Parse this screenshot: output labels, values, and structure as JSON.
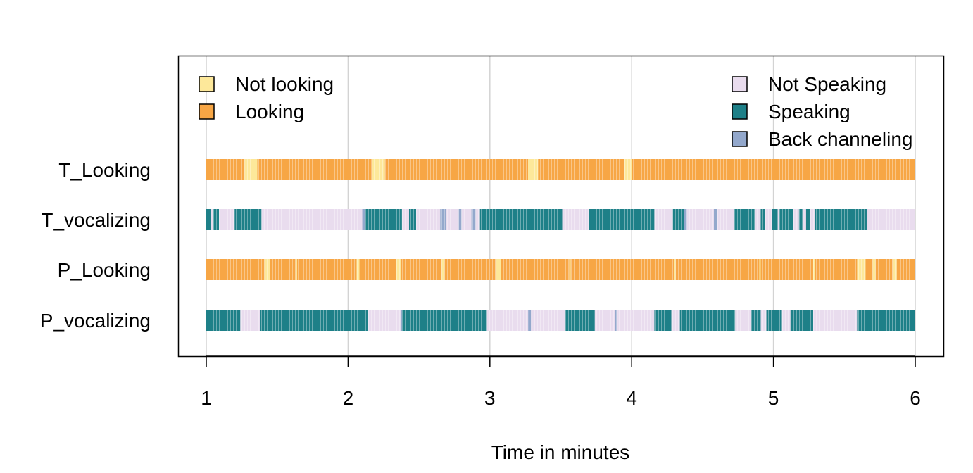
{
  "chart_data": {
    "type": "timeline",
    "title": "",
    "xlabel": "Time in minutes",
    "ylabel": "",
    "xlim": [
      1,
      6
    ],
    "x_ticks": [
      "1",
      "2",
      "3",
      "4",
      "5",
      "6"
    ],
    "x_tick_values": [
      1,
      2,
      3,
      4,
      5,
      6
    ],
    "grid": "vertical",
    "colors": {
      "Not looking": "#fde89a",
      "Looking": "#f7a645",
      "Not Speaking": "#e9dcee",
      "Speaking": "#1e8088",
      "Back channeling": "#93a8cc"
    },
    "legends": [
      {
        "placement": "top-left",
        "entries": [
          "Not looking",
          "Looking"
        ]
      },
      {
        "placement": "top-right",
        "entries": [
          "Not Speaking",
          "Speaking",
          "Back channeling"
        ]
      }
    ],
    "rows": [
      {
        "name": "T_Looking",
        "segments": [
          {
            "start": 1.0,
            "end": 1.27,
            "state": "Looking"
          },
          {
            "start": 1.27,
            "end": 1.36,
            "state": "Not looking"
          },
          {
            "start": 1.36,
            "end": 2.17,
            "state": "Looking"
          },
          {
            "start": 2.17,
            "end": 2.26,
            "state": "Not looking"
          },
          {
            "start": 2.26,
            "end": 3.27,
            "state": "Looking"
          },
          {
            "start": 3.27,
            "end": 3.34,
            "state": "Not looking"
          },
          {
            "start": 3.34,
            "end": 3.95,
            "state": "Looking"
          },
          {
            "start": 3.95,
            "end": 4.0,
            "state": "Not looking"
          },
          {
            "start": 4.0,
            "end": 6.0,
            "state": "Looking"
          }
        ]
      },
      {
        "name": "T_vocalizing",
        "segments": [
          {
            "start": 1.0,
            "end": 1.03,
            "state": "Speaking"
          },
          {
            "start": 1.03,
            "end": 1.05,
            "state": "Not Speaking"
          },
          {
            "start": 1.05,
            "end": 1.09,
            "state": "Speaking"
          },
          {
            "start": 1.09,
            "end": 1.2,
            "state": "Not Speaking"
          },
          {
            "start": 1.2,
            "end": 1.39,
            "state": "Speaking"
          },
          {
            "start": 1.39,
            "end": 2.1,
            "state": "Not Speaking"
          },
          {
            "start": 2.1,
            "end": 2.12,
            "state": "Back channeling"
          },
          {
            "start": 2.12,
            "end": 2.38,
            "state": "Speaking"
          },
          {
            "start": 2.38,
            "end": 2.43,
            "state": "Not Speaking"
          },
          {
            "start": 2.43,
            "end": 2.48,
            "state": "Speaking"
          },
          {
            "start": 2.48,
            "end": 2.65,
            "state": "Not Speaking"
          },
          {
            "start": 2.65,
            "end": 2.69,
            "state": "Back channeling"
          },
          {
            "start": 2.69,
            "end": 2.78,
            "state": "Not Speaking"
          },
          {
            "start": 2.78,
            "end": 2.8,
            "state": "Back channeling"
          },
          {
            "start": 2.8,
            "end": 2.87,
            "state": "Not Speaking"
          },
          {
            "start": 2.87,
            "end": 2.9,
            "state": "Back channeling"
          },
          {
            "start": 2.9,
            "end": 2.93,
            "state": "Not Speaking"
          },
          {
            "start": 2.93,
            "end": 3.51,
            "state": "Speaking"
          },
          {
            "start": 3.51,
            "end": 3.7,
            "state": "Not Speaking"
          },
          {
            "start": 3.7,
            "end": 4.16,
            "state": "Speaking"
          },
          {
            "start": 4.16,
            "end": 4.29,
            "state": "Not Speaking"
          },
          {
            "start": 4.29,
            "end": 4.37,
            "state": "Speaking"
          },
          {
            "start": 4.37,
            "end": 4.39,
            "state": "Back channeling"
          },
          {
            "start": 4.39,
            "end": 4.58,
            "state": "Not Speaking"
          },
          {
            "start": 4.58,
            "end": 4.6,
            "state": "Back channeling"
          },
          {
            "start": 4.6,
            "end": 4.72,
            "state": "Not Speaking"
          },
          {
            "start": 4.72,
            "end": 4.87,
            "state": "Speaking"
          },
          {
            "start": 4.87,
            "end": 4.91,
            "state": "Not Speaking"
          },
          {
            "start": 4.91,
            "end": 4.94,
            "state": "Speaking"
          },
          {
            "start": 4.94,
            "end": 4.99,
            "state": "Not Speaking"
          },
          {
            "start": 4.99,
            "end": 5.03,
            "state": "Speaking"
          },
          {
            "start": 5.03,
            "end": 5.04,
            "state": "Not Speaking"
          },
          {
            "start": 5.04,
            "end": 5.14,
            "state": "Speaking"
          },
          {
            "start": 5.14,
            "end": 5.18,
            "state": "Not Speaking"
          },
          {
            "start": 5.18,
            "end": 5.21,
            "state": "Speaking"
          },
          {
            "start": 5.21,
            "end": 5.23,
            "state": "Not Speaking"
          },
          {
            "start": 5.23,
            "end": 5.26,
            "state": "Speaking"
          },
          {
            "start": 5.26,
            "end": 5.29,
            "state": "Not Speaking"
          },
          {
            "start": 5.29,
            "end": 5.66,
            "state": "Speaking"
          },
          {
            "start": 5.66,
            "end": 6.0,
            "state": "Not Speaking"
          }
        ]
      },
      {
        "name": "P_Looking",
        "segments": [
          {
            "start": 1.0,
            "end": 1.41,
            "state": "Looking"
          },
          {
            "start": 1.41,
            "end": 1.45,
            "state": "Not looking"
          },
          {
            "start": 1.45,
            "end": 1.63,
            "state": "Looking"
          },
          {
            "start": 1.63,
            "end": 1.64,
            "state": "Not looking"
          },
          {
            "start": 1.64,
            "end": 2.06,
            "state": "Looking"
          },
          {
            "start": 2.06,
            "end": 2.08,
            "state": "Not looking"
          },
          {
            "start": 2.08,
            "end": 2.34,
            "state": "Looking"
          },
          {
            "start": 2.34,
            "end": 2.37,
            "state": "Not looking"
          },
          {
            "start": 2.37,
            "end": 2.66,
            "state": "Looking"
          },
          {
            "start": 2.66,
            "end": 2.68,
            "state": "Not looking"
          },
          {
            "start": 2.68,
            "end": 3.04,
            "state": "Looking"
          },
          {
            "start": 3.04,
            "end": 3.08,
            "state": "Not looking"
          },
          {
            "start": 3.08,
            "end": 3.56,
            "state": "Looking"
          },
          {
            "start": 3.56,
            "end": 3.57,
            "state": "Not looking"
          },
          {
            "start": 3.57,
            "end": 4.3,
            "state": "Looking"
          },
          {
            "start": 4.3,
            "end": 4.31,
            "state": "Not looking"
          },
          {
            "start": 4.31,
            "end": 4.9,
            "state": "Looking"
          },
          {
            "start": 4.9,
            "end": 4.91,
            "state": "Not looking"
          },
          {
            "start": 4.91,
            "end": 5.28,
            "state": "Looking"
          },
          {
            "start": 5.28,
            "end": 5.29,
            "state": "Not looking"
          },
          {
            "start": 5.29,
            "end": 5.59,
            "state": "Looking"
          },
          {
            "start": 5.59,
            "end": 5.65,
            "state": "Not looking"
          },
          {
            "start": 5.65,
            "end": 5.7,
            "state": "Looking"
          },
          {
            "start": 5.7,
            "end": 5.72,
            "state": "Not looking"
          },
          {
            "start": 5.72,
            "end": 5.84,
            "state": "Looking"
          },
          {
            "start": 5.84,
            "end": 5.87,
            "state": "Not looking"
          },
          {
            "start": 5.87,
            "end": 6.0,
            "state": "Looking"
          }
        ]
      },
      {
        "name": "P_vocalizing",
        "segments": [
          {
            "start": 1.0,
            "end": 1.24,
            "state": "Speaking"
          },
          {
            "start": 1.24,
            "end": 1.38,
            "state": "Not Speaking"
          },
          {
            "start": 1.38,
            "end": 2.14,
            "state": "Speaking"
          },
          {
            "start": 2.14,
            "end": 2.37,
            "state": "Not Speaking"
          },
          {
            "start": 2.37,
            "end": 2.38,
            "state": "Back channeling"
          },
          {
            "start": 2.38,
            "end": 2.98,
            "state": "Speaking"
          },
          {
            "start": 2.98,
            "end": 3.27,
            "state": "Not Speaking"
          },
          {
            "start": 3.27,
            "end": 3.29,
            "state": "Back channeling"
          },
          {
            "start": 3.29,
            "end": 3.53,
            "state": "Not Speaking"
          },
          {
            "start": 3.53,
            "end": 3.74,
            "state": "Speaking"
          },
          {
            "start": 3.74,
            "end": 3.88,
            "state": "Not Speaking"
          },
          {
            "start": 3.88,
            "end": 3.9,
            "state": "Back channeling"
          },
          {
            "start": 3.9,
            "end": 4.16,
            "state": "Not Speaking"
          },
          {
            "start": 4.16,
            "end": 4.28,
            "state": "Speaking"
          },
          {
            "start": 4.28,
            "end": 4.34,
            "state": "Not Speaking"
          },
          {
            "start": 4.34,
            "end": 4.73,
            "state": "Speaking"
          },
          {
            "start": 4.73,
            "end": 4.84,
            "state": "Not Speaking"
          },
          {
            "start": 4.84,
            "end": 4.91,
            "state": "Speaking"
          },
          {
            "start": 4.91,
            "end": 4.95,
            "state": "Not Speaking"
          },
          {
            "start": 4.95,
            "end": 5.06,
            "state": "Speaking"
          },
          {
            "start": 5.06,
            "end": 5.12,
            "state": "Not Speaking"
          },
          {
            "start": 5.12,
            "end": 5.28,
            "state": "Speaking"
          },
          {
            "start": 5.28,
            "end": 5.59,
            "state": "Not Speaking"
          },
          {
            "start": 5.59,
            "end": 6.0,
            "state": "Speaking"
          }
        ]
      }
    ]
  }
}
